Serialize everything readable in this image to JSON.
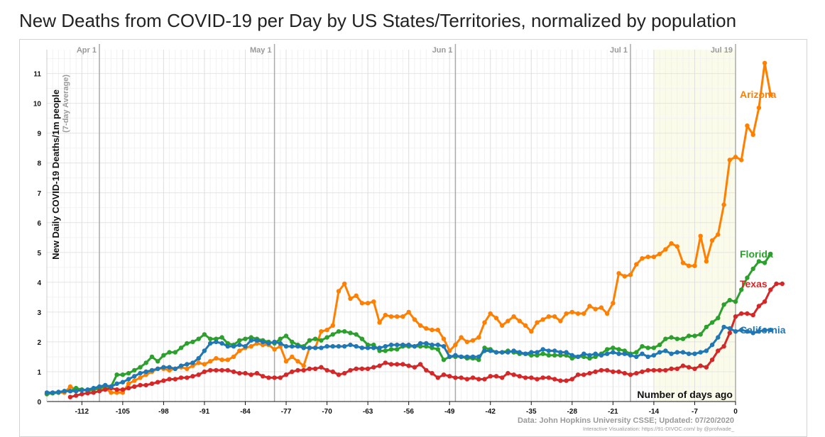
{
  "title": "New Deaths from COVID-19 per Day by US States/Territories, normalized by population",
  "chart_data": {
    "type": "line",
    "ylabel": "New Daily COVID-19 Deaths/1m people",
    "ylabel_note": "(7-day Average)",
    "xlabel": "Number of days ago",
    "x_ticks": [
      -112,
      -105,
      -98,
      -91,
      -84,
      -77,
      -70,
      -63,
      -56,
      -49,
      -42,
      -35,
      -28,
      -21,
      -14,
      -7,
      0
    ],
    "y_ticks": [
      0,
      1,
      2,
      3,
      4,
      5,
      6,
      7,
      8,
      9,
      10,
      11
    ],
    "xlim": [
      -118,
      0
    ],
    "ylim": [
      0,
      11.8
    ],
    "grid": true,
    "month_markers": [
      {
        "label": "Apr 1",
        "x": -109
      },
      {
        "label": "May 1",
        "x": -79
      },
      {
        "label": "Jun 1",
        "x": -48
      },
      {
        "label": "Jul 1",
        "x": -18
      },
      {
        "label": "Jul 19",
        "x": 0
      }
    ],
    "highlight_region": [
      -14,
      0
    ],
    "x_start": -118,
    "series": [
      {
        "name": "Arizona",
        "color": "#ff8000",
        "values": [
          0.25,
          0.28,
          0.3,
          0.3,
          0.5,
          0.4,
          0.4,
          0.38,
          0.4,
          0.42,
          0.45,
          0.3,
          0.3,
          0.3,
          0.6,
          0.7,
          0.8,
          0.9,
          1.0,
          1.1,
          1.1,
          1.05,
          1.1,
          1.15,
          1.1,
          1.2,
          1.3,
          1.25,
          1.35,
          1.45,
          1.4,
          1.4,
          1.5,
          1.7,
          1.8,
          1.85,
          1.95,
          1.9,
          1.9,
          1.75,
          1.85,
          1.35,
          1.5,
          1.35,
          1.2,
          1.8,
          1.8,
          2.35,
          2.4,
          2.55,
          3.7,
          3.95,
          3.45,
          3.55,
          3.3,
          3.3,
          3.35,
          2.65,
          2.9,
          2.85,
          2.85,
          2.85,
          3.0,
          2.75,
          2.55,
          2.45,
          2.4,
          2.4,
          2.1,
          1.7,
          1.9,
          2.15,
          2.0,
          2.05,
          2.15,
          2.65,
          2.95,
          2.8,
          2.55,
          2.7,
          2.85,
          2.7,
          2.55,
          2.35,
          2.65,
          2.75,
          2.85,
          2.85,
          2.7,
          2.95,
          3.0,
          2.95,
          2.95,
          3.2,
          3.1,
          3.15,
          2.95,
          3.3,
          4.3,
          4.2,
          4.25,
          4.6,
          4.8,
          4.85,
          4.85,
          4.95,
          5.1,
          5.3,
          5.2,
          4.65,
          4.55,
          4.55,
          5.55,
          4.7,
          5.4,
          5.6,
          6.6,
          8.1,
          8.2,
          8.1,
          9.25,
          8.95,
          9.85,
          11.35,
          10.3
        ]
      },
      {
        "name": "Florida",
        "color": "#2ca02c",
        "values": [
          0.25,
          0.28,
          0.3,
          0.35,
          0.35,
          0.45,
          0.4,
          0.35,
          0.4,
          0.45,
          0.5,
          0.5,
          0.9,
          0.9,
          0.95,
          1.05,
          1.15,
          1.3,
          1.5,
          1.35,
          1.55,
          1.65,
          1.65,
          1.8,
          1.95,
          2.0,
          2.1,
          2.25,
          2.1,
          2.1,
          2.15,
          1.95,
          1.9,
          2.05,
          2.1,
          2.15,
          2.1,
          2.05,
          2.0,
          1.95,
          2.1,
          2.2,
          2.0,
          1.9,
          1.85,
          2.05,
          2.1,
          2.05,
          2.15,
          2.25,
          2.35,
          2.35,
          2.3,
          2.25,
          2.1,
          1.9,
          1.9,
          1.7,
          1.7,
          1.75,
          1.75,
          1.85,
          1.85,
          1.85,
          1.85,
          1.85,
          1.8,
          1.75,
          1.4,
          1.5,
          1.5,
          1.5,
          1.45,
          1.45,
          1.4,
          1.8,
          1.75,
          1.65,
          1.65,
          1.7,
          1.65,
          1.6,
          1.6,
          1.55,
          1.55,
          1.6,
          1.55,
          1.55,
          1.55,
          1.55,
          1.45,
          1.5,
          1.5,
          1.45,
          1.5,
          1.6,
          1.75,
          1.8,
          1.75,
          1.7,
          1.6,
          1.65,
          1.85,
          1.8,
          1.8,
          1.9,
          2.1,
          2.15,
          2.1,
          2.1,
          2.2,
          2.2,
          2.25,
          2.5,
          2.65,
          2.8,
          3.25,
          3.4,
          3.35,
          3.75,
          4.15,
          4.45,
          4.7,
          4.65,
          4.95
        ]
      },
      {
        "name": "Texas",
        "color": "#d62728",
        "values": [
          null,
          null,
          null,
          null,
          0.15,
          0.2,
          0.25,
          0.28,
          0.3,
          0.35,
          0.4,
          0.45,
          0.4,
          0.4,
          0.45,
          0.5,
          0.55,
          0.55,
          0.6,
          0.65,
          0.7,
          0.75,
          0.75,
          0.8,
          0.8,
          0.85,
          0.9,
          1.0,
          1.05,
          1.05,
          1.05,
          1.05,
          1.0,
          0.95,
          0.95,
          0.9,
          0.95,
          0.85,
          0.8,
          0.8,
          0.8,
          0.9,
          1.0,
          1.05,
          1.05,
          1.1,
          1.1,
          1.15,
          1.05,
          1.0,
          0.9,
          0.95,
          1.05,
          1.1,
          1.1,
          1.1,
          1.15,
          1.2,
          1.3,
          1.25,
          1.25,
          1.25,
          1.2,
          1.15,
          1.25,
          1.05,
          0.95,
          0.8,
          0.9,
          0.85,
          0.8,
          0.8,
          0.75,
          0.8,
          0.75,
          0.75,
          0.85,
          0.85,
          0.8,
          0.95,
          0.9,
          0.85,
          0.8,
          0.8,
          0.75,
          0.8,
          0.8,
          0.75,
          0.7,
          0.7,
          0.75,
          0.9,
          0.9,
          0.95,
          1.0,
          1.05,
          1.05,
          1.0,
          1.0,
          0.95,
          0.9,
          0.95,
          1.0,
          1.05,
          1.05,
          1.05,
          1.05,
          1.1,
          1.1,
          1.2,
          1.15,
          1.1,
          1.2,
          1.15,
          1.4,
          1.7,
          1.85,
          2.3,
          2.85,
          2.95,
          2.95,
          2.9,
          3.2,
          3.35,
          3.75,
          3.95,
          3.95
        ]
      },
      {
        "name": "California",
        "color": "#1f77b4",
        "values": [
          0.3,
          0.3,
          0.32,
          0.35,
          0.35,
          0.35,
          0.38,
          0.4,
          0.45,
          0.5,
          0.55,
          0.5,
          0.6,
          0.65,
          0.75,
          0.85,
          0.95,
          1.0,
          1.05,
          1.1,
          1.15,
          1.15,
          1.1,
          1.2,
          1.25,
          1.3,
          1.45,
          1.7,
          1.95,
          2.0,
          1.95,
          1.85,
          1.85,
          1.9,
          1.85,
          2.05,
          2.05,
          2.0,
          1.95,
          2.0,
          1.95,
          1.85,
          1.85,
          1.85,
          1.8,
          1.8,
          1.8,
          1.8,
          1.85,
          1.85,
          1.85,
          1.85,
          1.9,
          1.85,
          1.8,
          1.8,
          1.8,
          1.8,
          1.85,
          1.9,
          1.9,
          1.9,
          1.9,
          1.85,
          1.95,
          1.95,
          1.9,
          1.9,
          1.85,
          1.5,
          1.55,
          1.5,
          1.5,
          1.5,
          1.5,
          1.7,
          1.7,
          1.65,
          1.65,
          1.65,
          1.7,
          1.65,
          1.6,
          1.65,
          1.65,
          1.75,
          1.7,
          1.7,
          1.65,
          1.65,
          1.55,
          1.5,
          1.6,
          1.55,
          1.6,
          1.55,
          1.6,
          1.65,
          1.6,
          1.6,
          1.55,
          1.5,
          1.6,
          1.5,
          1.55,
          1.65,
          1.7,
          1.6,
          1.65,
          1.65,
          1.6,
          1.6,
          1.65,
          1.7,
          1.9,
          2.15,
          2.5,
          2.45,
          2.35,
          2.4,
          2.35,
          2.3,
          2.35,
          2.4,
          2.4
        ]
      }
    ]
  },
  "footer": {
    "source": "Data: John Hopkins University CSSE; Updated: 07/20/2020",
    "credit": "Interactive Visualization: https://91-DIVOC.com/ by @profwade_"
  }
}
